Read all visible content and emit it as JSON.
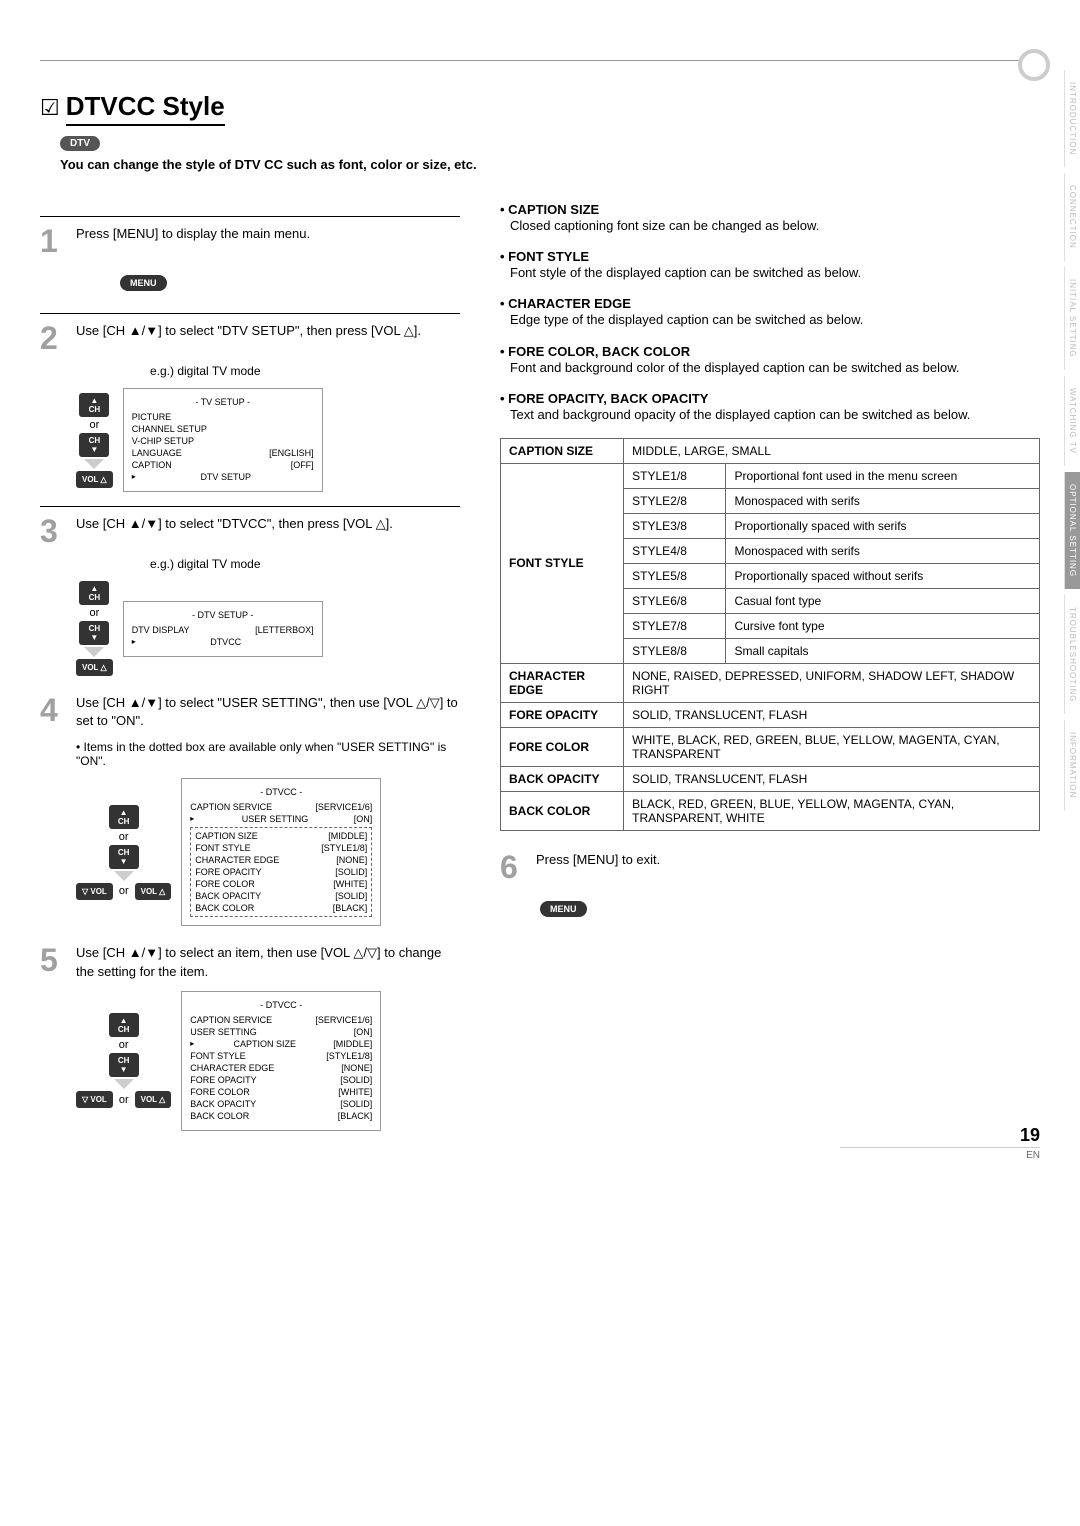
{
  "page": {
    "title": "DTVCC Style",
    "badge": "DTV",
    "intro": "You can change the style of DTV CC such as font, color or size, etc.",
    "pageNumber": "19",
    "lang": "EN"
  },
  "sideTabs": [
    "INTRODUCTION",
    "CONNECTION",
    "INITIAL SETTING",
    "WATCHING TV",
    "OPTIONAL SETTING",
    "TROUBLESHOOTING",
    "INFORMATION"
  ],
  "activeTab": 4,
  "steps": {
    "s1": {
      "num": "1",
      "text": "Press [MENU] to display the main menu.",
      "pill": "MENU"
    },
    "s2": {
      "num": "2",
      "text": "Use [CH ▲/▼] to select \"DTV SETUP\", then press [VOL △].",
      "eg": "e.g.) digital TV mode",
      "osd_title": "- TV SETUP -",
      "osd_items": [
        {
          "label": "PICTURE",
          "val": ""
        },
        {
          "label": "CHANNEL SETUP",
          "val": ""
        },
        {
          "label": "V-CHIP   SETUP",
          "val": ""
        },
        {
          "label": "LANGUAGE",
          "val": "[ENGLISH]"
        },
        {
          "label": "CAPTION",
          "val": "[OFF]"
        },
        {
          "label": "DTV SETUP",
          "val": "",
          "cursor": true
        }
      ]
    },
    "s3": {
      "num": "3",
      "text": "Use [CH ▲/▼] to select \"DTVCC\", then press [VOL △].",
      "eg": "e.g.) digital TV mode",
      "osd_title": "- DTV SETUP -",
      "osd_items": [
        {
          "label": "DTV DISPLAY",
          "val": "[LETTERBOX]"
        },
        {
          "label": "DTVCC",
          "val": "",
          "cursor": true
        }
      ]
    },
    "s4": {
      "num": "4",
      "text": "Use [CH ▲/▼] to select \"USER SETTING\", then use [VOL △/▽] to set to \"ON\".",
      "note": "Items in the dotted box are available only when \"USER SETTING\" is \"ON\".",
      "osd_title": "- DTVCC -",
      "osd_items": [
        {
          "label": "CAPTION SERVICE",
          "val": "[SERVICE1/6]"
        },
        {
          "label": "USER SETTING",
          "val": "[ON]",
          "cursor": true
        }
      ],
      "osd_dotted": [
        {
          "label": "CAPTION SIZE",
          "val": "[MIDDLE]"
        },
        {
          "label": "FONT STYLE",
          "val": "[STYLE1/8]"
        },
        {
          "label": "CHARACTER EDGE",
          "val": "[NONE]"
        },
        {
          "label": "FORE OPACITY",
          "val": "[SOLID]"
        },
        {
          "label": "FORE COLOR",
          "val": "[WHITE]"
        },
        {
          "label": "BACK OPACITY",
          "val": "[SOLID]"
        },
        {
          "label": "BACK COLOR",
          "val": "[BLACK]"
        }
      ]
    },
    "s5": {
      "num": "5",
      "text": "Use [CH ▲/▼] to select an item, then use [VOL △/▽] to change the setting for the item.",
      "osd_title": "- DTVCC -",
      "osd_items": [
        {
          "label": "CAPTION SERVICE",
          "val": "[SERVICE1/6]"
        },
        {
          "label": "USER SETTING",
          "val": "[ON]"
        },
        {
          "label": "CAPTION SIZE",
          "val": "[MIDDLE]",
          "cursor": true
        },
        {
          "label": "FONT STYLE",
          "val": "[STYLE1/8]"
        },
        {
          "label": "CHARACTER EDGE",
          "val": "[NONE]"
        },
        {
          "label": "FORE OPACITY",
          "val": "[SOLID]"
        },
        {
          "label": "FORE COLOR",
          "val": "[WHITE]"
        },
        {
          "label": "BACK OPACITY",
          "val": "[SOLID]"
        },
        {
          "label": "BACK COLOR",
          "val": "[BLACK]"
        }
      ]
    },
    "s6": {
      "num": "6",
      "text": "Press [MENU] to exit.",
      "pill": "MENU"
    }
  },
  "descriptions": [
    {
      "title": "CAPTION SIZE",
      "text": "Closed captioning font size can be changed as below."
    },
    {
      "title": "FONT STYLE",
      "text": "Font style of the displayed caption can be switched as below."
    },
    {
      "title": "CHARACTER EDGE",
      "text": "Edge type of the displayed caption can be switched as below."
    },
    {
      "title": "FORE COLOR, BACK COLOR",
      "text": "Font and background color of the displayed caption can be switched as below."
    },
    {
      "title": "FORE OPACITY, BACK OPACITY",
      "text": "Text and background opacity of the displayed caption can be switched as below."
    }
  ],
  "optionsTable": {
    "captionSize": {
      "label": "CAPTION SIZE",
      "value": "MIDDLE, LARGE, SMALL"
    },
    "fontStyle": {
      "label": "FONT STYLE",
      "rows": [
        {
          "style": "STYLE1/8",
          "desc": "Proportional font used in the menu screen"
        },
        {
          "style": "STYLE2/8",
          "desc": "Monospaced with serifs"
        },
        {
          "style": "STYLE3/8",
          "desc": "Proportionally spaced with serifs"
        },
        {
          "style": "STYLE4/8",
          "desc": "Monospaced with serifs"
        },
        {
          "style": "STYLE5/8",
          "desc": "Proportionally spaced without serifs"
        },
        {
          "style": "STYLE6/8",
          "desc": "Casual font type"
        },
        {
          "style": "STYLE7/8",
          "desc": "Cursive font type"
        },
        {
          "style": "STYLE8/8",
          "desc": "Small capitals"
        }
      ]
    },
    "characterEdge": {
      "label": "CHARACTER EDGE",
      "value": "NONE, RAISED, DEPRESSED, UNIFORM, SHADOW LEFT, SHADOW RIGHT"
    },
    "foreOpacity": {
      "label": "FORE OPACITY",
      "value": "SOLID, TRANSLUCENT, FLASH"
    },
    "foreColor": {
      "label": "FORE COLOR",
      "value": "WHITE, BLACK, RED, GREEN, BLUE, YELLOW, MAGENTA, CYAN, TRANSPARENT"
    },
    "backOpacity": {
      "label": "BACK OPACITY",
      "value": "SOLID, TRANSLUCENT, FLASH"
    },
    "backColor": {
      "label": "BACK COLOR",
      "value": "BLACK, RED, GREEN, BLUE, YELLOW, MAGENTA, CYAN, TRANSPARENT, WHITE"
    }
  },
  "labels": {
    "ch_up": "▲\nCH",
    "ch_down": "CH\n▼",
    "or": "or",
    "vol_up": "VOL △",
    "vol_down": "▽ VOL"
  }
}
